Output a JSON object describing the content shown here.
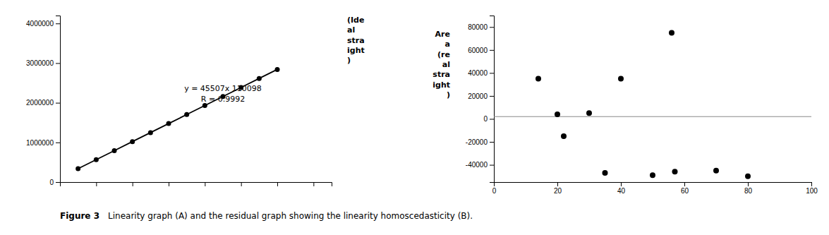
{
  "chart_data": [
    {
      "type": "line",
      "marker": "circle",
      "color": "#000000",
      "x": [
        5,
        10,
        15,
        20,
        25,
        30,
        35,
        40,
        45,
        50,
        55,
        60
      ],
      "values": [
        337633,
        565168,
        792703,
        1020238,
        1247773,
        1475308,
        1702843,
        1930378,
        2157913,
        2385448,
        2612983,
        2840518
      ],
      "xlim": [
        0,
        75
      ],
      "xticks": [
        10,
        20,
        30,
        40,
        50,
        60,
        70
      ],
      "ylim": [
        0,
        4200000
      ],
      "yticks": [
        0,
        1000000,
        2000000,
        3000000,
        4000000
      ],
      "tick_labels": "y",
      "annotations": [
        "y = 45507x 110098\nR = 0.9992",
        "(Ide\nal\nstra\night\n)"
      ]
    },
    {
      "type": "scatter",
      "color": "#000000",
      "ylabel": "Are\na\n(re\nal\nstra\night\n)",
      "x": [
        14,
        20,
        30,
        40,
        56,
        70,
        80,
        22,
        35,
        50,
        57
      ],
      "values": [
        35000,
        4000,
        5000,
        35000,
        75000,
        -45000,
        -50000,
        -15000,
        -47000,
        -49000,
        -46000
      ],
      "hline": 2000,
      "xlim": [
        0,
        100
      ],
      "xticks": [
        0,
        20,
        40,
        60,
        80,
        100
      ],
      "ylim": [
        -55000,
        90000
      ],
      "yticks": [
        -40000,
        -20000,
        0,
        20000,
        40000,
        60000,
        80000
      ]
    }
  ],
  "figure_label": "Figure 3",
  "caption": "Linearity graph (A) and the residual graph showing the linearity homoscedasticity (B)."
}
